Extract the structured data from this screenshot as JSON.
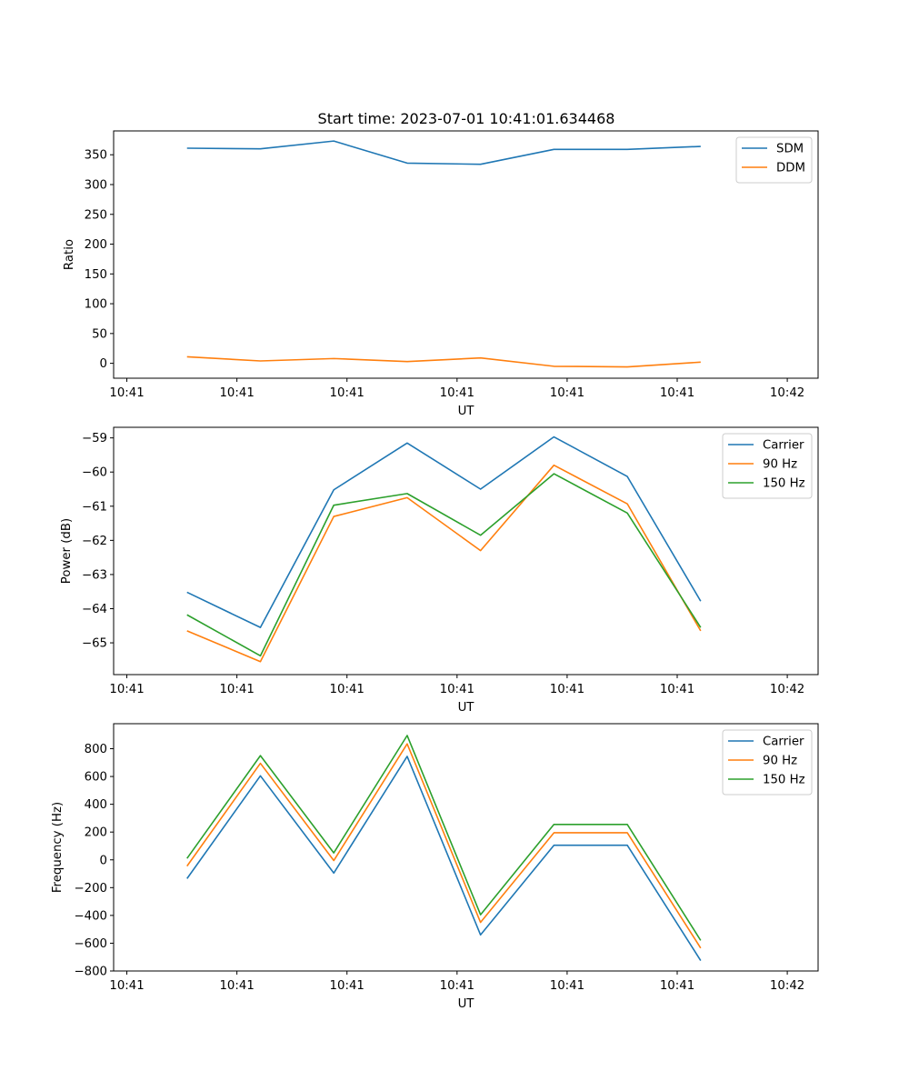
{
  "title": "Start time: 2023-07-01 10:41:01.634468",
  "chart_data": [
    {
      "type": "line",
      "title": "Start time: 2023-07-01 10:41:01.634468",
      "xlabel": "UT",
      "ylabel": "Ratio",
      "x": [
        0.3,
        0.5,
        0.7,
        0.9,
        1.1,
        1.3,
        1.5,
        1.7
      ],
      "xlim": [
        0.1,
        2.02
      ],
      "xticks": [
        0.136,
        0.436,
        0.736,
        1.036,
        1.336,
        1.636,
        1.936
      ],
      "xtick_labels": [
        "10:41",
        "10:41",
        "10:41",
        "10:41",
        "10:41",
        "10:41",
        "10:42"
      ],
      "ylim": [
        -25,
        390
      ],
      "yticks": [
        0,
        50,
        100,
        150,
        200,
        250,
        300,
        350
      ],
      "ytick_labels": [
        "0",
        "50",
        "100",
        "150",
        "200",
        "250",
        "300",
        "350"
      ],
      "legend_position": "top-right",
      "series": [
        {
          "name": "SDM",
          "color": "#1f77b4",
          "values": [
            361,
            360,
            373,
            336,
            334,
            359,
            359,
            364
          ]
        },
        {
          "name": "DDM",
          "color": "#ff7f0e",
          "values": [
            11,
            4,
            8,
            3,
            9,
            -5,
            -6,
            2
          ]
        }
      ]
    },
    {
      "type": "line",
      "title": "",
      "xlabel": "UT",
      "ylabel": "Power (dB)",
      "x": [
        0.3,
        0.5,
        0.7,
        0.9,
        1.1,
        1.3,
        1.5,
        1.7
      ],
      "xlim": [
        0.1,
        2.02
      ],
      "xticks": [
        0.136,
        0.436,
        0.736,
        1.036,
        1.336,
        1.636,
        1.936
      ],
      "xtick_labels": [
        "10:41",
        "10:41",
        "10:41",
        "10:41",
        "10:41",
        "10:41",
        "10:42"
      ],
      "ylim": [
        -65.93,
        -58.69
      ],
      "yticks": [
        -65,
        -64,
        -63,
        -62,
        -61,
        -60,
        -59
      ],
      "ytick_labels": [
        "−65",
        "−64",
        "−63",
        "−62",
        "−61",
        "−60",
        "−59"
      ],
      "legend_position": "top-right",
      "series": [
        {
          "name": "Carrier",
          "color": "#1f77b4",
          "values": [
            -63.52,
            -64.55,
            -60.52,
            -59.15,
            -60.5,
            -58.97,
            -60.13,
            -63.78
          ]
        },
        {
          "name": "90 Hz",
          "color": "#ff7f0e",
          "values": [
            -64.65,
            -65.55,
            -61.3,
            -60.75,
            -62.3,
            -59.8,
            -60.93,
            -64.65
          ]
        },
        {
          "name": "150 Hz",
          "color": "#2ca02c",
          "values": [
            -64.18,
            -65.38,
            -60.97,
            -60.63,
            -61.85,
            -60.05,
            -61.2,
            -64.55
          ]
        }
      ]
    },
    {
      "type": "line",
      "title": "",
      "xlabel": "UT",
      "ylabel": "Frequency (Hz)",
      "x": [
        0.3,
        0.5,
        0.7,
        0.9,
        1.1,
        1.3,
        1.5,
        1.7
      ],
      "xlim": [
        0.1,
        2.02
      ],
      "xticks": [
        0.136,
        0.436,
        0.736,
        1.036,
        1.336,
        1.636,
        1.936
      ],
      "xtick_labels": [
        "10:41",
        "10:41",
        "10:41",
        "10:41",
        "10:41",
        "10:41",
        "10:42"
      ],
      "ylim": [
        -800,
        980
      ],
      "yticks": [
        -800,
        -600,
        -400,
        -200,
        0,
        200,
        400,
        600,
        800
      ],
      "ytick_labels": [
        "−800",
        "−600",
        "−400",
        "−200",
        "0",
        "200",
        "400",
        "600",
        "800"
      ],
      "legend_position": "top-right",
      "series": [
        {
          "name": "Carrier",
          "color": "#1f77b4",
          "values": [
            -135,
            605,
            -95,
            745,
            -540,
            105,
            105,
            -725
          ]
        },
        {
          "name": "90 Hz",
          "color": "#ff7f0e",
          "values": [
            -45,
            695,
            -5,
            835,
            -450,
            195,
            195,
            -635
          ]
        },
        {
          "name": "150 Hz",
          "color": "#2ca02c",
          "values": [
            10,
            750,
            50,
            895,
            -395,
            255,
            255,
            -580
          ]
        }
      ]
    }
  ]
}
